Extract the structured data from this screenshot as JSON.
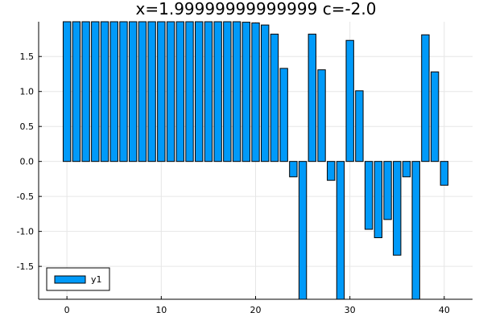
{
  "chart_data": {
    "type": "bar",
    "title": "x=1.99999999999999 c=-2.0",
    "xlabel": "",
    "ylabel": "",
    "xlim": [
      -3,
      43
    ],
    "ylim": [
      -1.97,
      1.997
    ],
    "x_ticks": [
      0,
      10,
      20,
      30,
      40
    ],
    "x_tick_labels": [
      "0",
      "10",
      "20",
      "30",
      "40"
    ],
    "y_ticks": [
      -1.5,
      -1.0,
      -0.5,
      0.0,
      0.5,
      1.0,
      1.5
    ],
    "y_tick_labels": [
      "-1.5",
      "-1.0",
      "-0.5",
      "0.0",
      "0.5",
      "1.0",
      "1.5"
    ],
    "grid": true,
    "legend_position": "bottom-left",
    "bar_color": "#009af9",
    "series": [
      {
        "name": "y1",
        "x": [
          0,
          1,
          2,
          3,
          4,
          5,
          6,
          7,
          8,
          9,
          10,
          11,
          12,
          13,
          14,
          15,
          16,
          17,
          18,
          19,
          20,
          21,
          22,
          23,
          24,
          25,
          26,
          27,
          28,
          29,
          30,
          31,
          32,
          33,
          34,
          35,
          36,
          37,
          38,
          39,
          40
        ],
        "values": [
          2.0,
          2.0,
          2.0,
          2.0,
          2.0,
          2.0,
          2.0,
          2.0,
          2.0,
          2.0,
          2.0,
          2.0,
          2.0,
          2.0,
          2.0,
          2.0,
          2.0,
          2.0,
          2.0,
          1.99,
          1.98,
          1.95,
          1.82,
          1.33,
          -0.22,
          -2.0,
          1.82,
          1.31,
          -0.27,
          -2.0,
          1.73,
          1.01,
          -0.97,
          -1.09,
          -0.83,
          -1.34,
          -0.22,
          -2.0,
          1.81,
          1.28,
          -0.34
        ]
      }
    ]
  }
}
